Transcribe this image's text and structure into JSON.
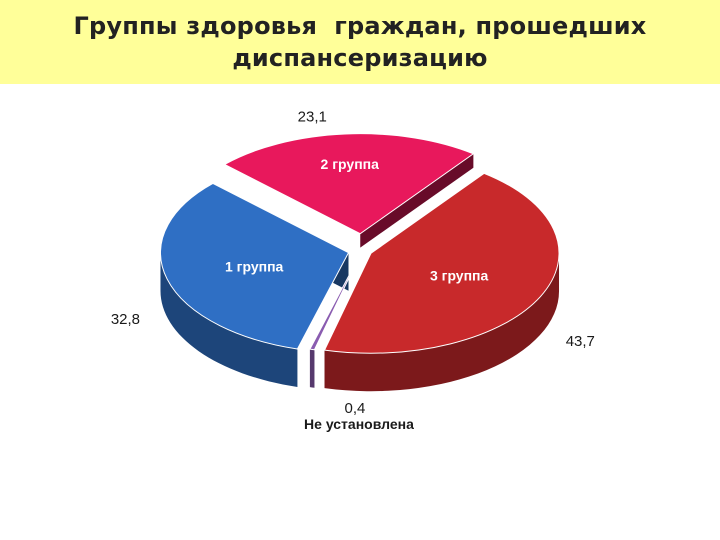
{
  "title": {
    "line1": "Группы здоровья  граждан, прошедших",
    "line2": "диспансеризацию"
  },
  "colors": {
    "title_band": "#ffff99",
    "group1": "#2f6fc4",
    "group2": "#e8185c",
    "group3": "#c8292b",
    "not_set": "#8a5cb0"
  },
  "chart_data": {
    "type": "pie",
    "style": "3d-exploded",
    "title": "Группы здоровья  граждан, прошедших диспансеризацию",
    "slices": [
      {
        "label": "3 группа",
        "value": 43.7,
        "value_text": "43,7"
      },
      {
        "label": "",
        "value": 0.4,
        "value_text": "0,4",
        "caption": "Не установлена"
      },
      {
        "label": "1 группа",
        "value": 32.8,
        "value_text": "32,8"
      },
      {
        "label": "2 группа",
        "value": 23.1,
        "value_text": "23,1"
      }
    ]
  }
}
